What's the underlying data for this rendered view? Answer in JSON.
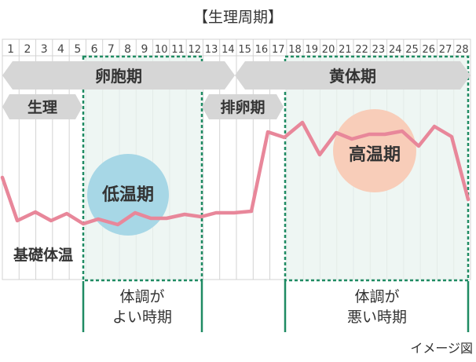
{
  "title": "【生理周期】",
  "days": [
    "1",
    "2",
    "3",
    "4",
    "5",
    "6",
    "7",
    "8",
    "9",
    "10",
    "11",
    "12",
    "13",
    "14",
    "15",
    "16",
    "17",
    "18",
    "19",
    "20",
    "21",
    "22",
    "23",
    "24",
    "25",
    "26",
    "27",
    "28"
  ],
  "phases": {
    "follicular": "卵胞期",
    "luteal": "黄体期",
    "menstruation": "生理",
    "ovulation": "排卵期"
  },
  "temperature": {
    "label": "基礎体温",
    "low_label": "低温期",
    "high_label": "高温期"
  },
  "condition": {
    "good": [
      "体調が",
      "よい時期"
    ],
    "bad": [
      "体調が",
      "悪い時期"
    ]
  },
  "note": "イメージ図",
  "colors": {
    "grid": "#d3d3d3",
    "arrow": "#d6d6d6",
    "highlight_fill": "#e8f3ef",
    "highlight_border": "#1f8b63",
    "temp_line": "#e8879a",
    "low_circle": "#a7d7e6",
    "high_circle": "#f8cdb9"
  }
}
